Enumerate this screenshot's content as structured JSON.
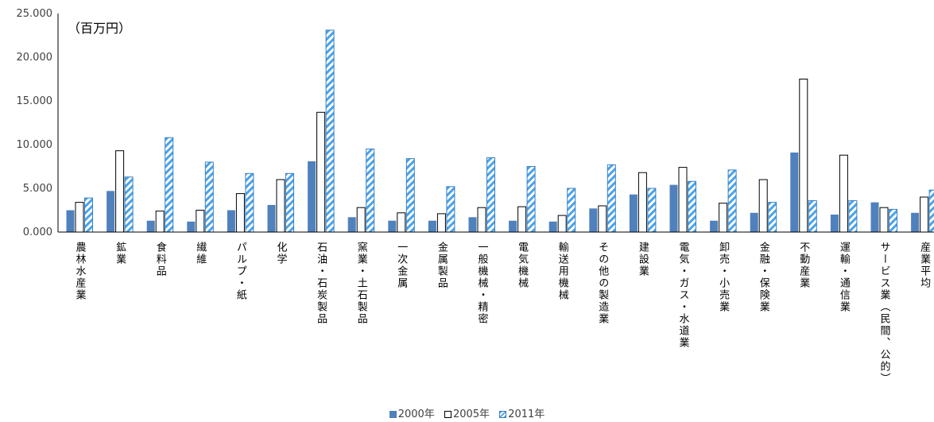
{
  "chart_data": {
    "type": "bar",
    "unit_label": "（百万円）",
    "y_ticks": [
      "0.000",
      "5.000",
      "10.000",
      "15.000",
      "20.000",
      "25.000"
    ],
    "ylim": [
      0,
      25
    ],
    "grid": false,
    "legend_position": "bottom",
    "categories": [
      "農林水産業",
      "鉱業",
      "食料品",
      "繊維",
      "パルプ・紙",
      "化学",
      "石油・石炭製品",
      "窯業・土石製品",
      "一次金属",
      "金属製品",
      "一般機械・精密",
      "電気機械",
      "輸送用機械",
      "その他の製造業",
      "建設業",
      "電気・ガス・水道業",
      "卸売・小売業",
      "金融・保険業",
      "不動産業",
      "運輸・通信業",
      "サービス業（民間、公的）",
      "産業平均"
    ],
    "series": [
      {
        "name": "2000年",
        "color": "#4f81bd",
        "values": [
          2.5,
          4.7,
          1.3,
          1.2,
          2.5,
          3.1,
          8.1,
          1.7,
          1.3,
          1.3,
          1.7,
          1.3,
          1.2,
          2.7,
          4.3,
          5.4,
          1.3,
          2.2,
          9.1,
          2.0,
          3.4,
          2.2
        ]
      },
      {
        "name": "2005年",
        "color": "#ffffff",
        "values": [
          3.4,
          9.3,
          2.4,
          2.5,
          4.4,
          6.0,
          13.7,
          2.8,
          2.2,
          2.1,
          2.8,
          2.9,
          1.9,
          3.0,
          6.8,
          7.4,
          3.3,
          6.0,
          17.5,
          8.8,
          2.8,
          4.0
        ]
      },
      {
        "name": "2011年",
        "color": "#4aa3e8",
        "values": [
          3.9,
          6.3,
          10.8,
          8.0,
          6.7,
          6.7,
          23.1,
          9.5,
          8.4,
          5.2,
          8.5,
          7.5,
          5.0,
          7.7,
          5.0,
          5.8,
          7.1,
          3.4,
          3.6,
          3.6,
          2.6,
          4.8
        ]
      }
    ]
  }
}
